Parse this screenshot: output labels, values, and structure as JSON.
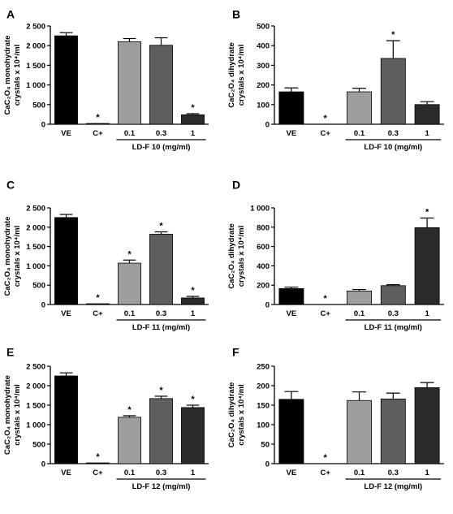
{
  "chart_data": [
    {
      "panel": "A",
      "type": "bar",
      "categories": [
        "VE",
        "C+",
        "0.1",
        "0.3",
        "1"
      ],
      "values": [
        2250,
        20,
        2100,
        2010,
        240
      ],
      "errors": [
        80,
        0,
        80,
        190,
        30
      ],
      "significant": [
        false,
        true,
        false,
        false,
        true
      ],
      "colors": [
        "#000000",
        "#000000",
        "#9e9e9e",
        "#5e5e5e",
        "#2a2a2a"
      ],
      "ylabel_line1": "CaC₂O₄ monohydrate",
      "ylabel_line2": "crystals x 10⁴/ml",
      "group_label": "LD-F 10 (mg/ml)",
      "ylim": [
        0,
        2500
      ],
      "yticks": [
        "0",
        "500",
        "1 000",
        "1 500",
        "2 000",
        "2 500"
      ],
      "ytick_values": [
        0,
        500,
        1000,
        1500,
        2000,
        2500
      ]
    },
    {
      "panel": "B",
      "type": "bar",
      "categories": [
        "VE",
        "C+",
        "0.1",
        "0.3",
        "1"
      ],
      "values": [
        165,
        0,
        165,
        335,
        100
      ],
      "errors": [
        20,
        0,
        18,
        90,
        15
      ],
      "significant": [
        false,
        true,
        false,
        true,
        false
      ],
      "colors": [
        "#000000",
        "#000000",
        "#9e9e9e",
        "#5e5e5e",
        "#2a2a2a"
      ],
      "ylabel_line1": "CaC₂O₄ dihydrate",
      "ylabel_line2": "crystals x 10⁴/ml",
      "group_label": "LD-F 10 (mg/ml)",
      "ylim": [
        0,
        500
      ],
      "yticks": [
        "0",
        "100",
        "200",
        "300",
        "400",
        "500"
      ],
      "ytick_values": [
        0,
        100,
        200,
        300,
        400,
        500
      ]
    },
    {
      "panel": "C",
      "type": "bar",
      "categories": [
        "VE",
        "C+",
        "0.1",
        "0.3",
        "1"
      ],
      "values": [
        2250,
        20,
        1070,
        1820,
        170
      ],
      "errors": [
        80,
        0,
        80,
        60,
        40
      ],
      "significant": [
        false,
        true,
        true,
        true,
        true
      ],
      "colors": [
        "#000000",
        "#000000",
        "#9e9e9e",
        "#5e5e5e",
        "#2a2a2a"
      ],
      "ylabel_line1": "CaC₂O₄ monohydrate",
      "ylabel_line2": "crystals x 10⁴/ml",
      "group_label": "LD-F 11 (mg/ml)",
      "ylim": [
        0,
        2500
      ],
      "yticks": [
        "0",
        "500",
        "1 000",
        "1 500",
        "2 000",
        "2 500"
      ],
      "ytick_values": [
        0,
        500,
        1000,
        1500,
        2000,
        2500
      ]
    },
    {
      "panel": "D",
      "type": "bar",
      "categories": [
        "VE",
        "C+",
        "0.1",
        "0.3",
        "1"
      ],
      "values": [
        165,
        0,
        140,
        195,
        795
      ],
      "errors": [
        15,
        0,
        15,
        10,
        100
      ],
      "significant": [
        false,
        true,
        false,
        false,
        true
      ],
      "colors": [
        "#000000",
        "#000000",
        "#9e9e9e",
        "#5e5e5e",
        "#2a2a2a"
      ],
      "ylabel_line1": "CaC₂O₄ dihydrate",
      "ylabel_line2": "crystals x 10⁴/ml",
      "group_label": "LD-F 11 (mg/ml)",
      "ylim": [
        0,
        1000
      ],
      "yticks": [
        "0",
        "200",
        "400",
        "600",
        "800",
        "1 000"
      ],
      "ytick_values": [
        0,
        200,
        400,
        600,
        800,
        1000
      ]
    },
    {
      "panel": "E",
      "type": "bar",
      "categories": [
        "VE",
        "C+",
        "0.1",
        "0.3",
        "1"
      ],
      "values": [
        2250,
        20,
        1190,
        1670,
        1440
      ],
      "errors": [
        80,
        0,
        40,
        60,
        60
      ],
      "significant": [
        false,
        true,
        true,
        true,
        true
      ],
      "colors": [
        "#000000",
        "#000000",
        "#9e9e9e",
        "#5e5e5e",
        "#2a2a2a"
      ],
      "ylabel_line1": "CaC₂O₄ monohydrate",
      "ylabel_line2": "crystals x 10⁴/ml",
      "group_label": "LD-F 12 (mg/ml)",
      "ylim": [
        0,
        2500
      ],
      "yticks": [
        "0",
        "500",
        "1 000",
        "1 500",
        "2 000",
        "2 500"
      ],
      "ytick_values": [
        0,
        500,
        1000,
        1500,
        2000,
        2500
      ]
    },
    {
      "panel": "F",
      "type": "bar",
      "categories": [
        "VE",
        "C+",
        "0.1",
        "0.3",
        "1"
      ],
      "values": [
        165,
        0,
        162,
        166,
        195
      ],
      "errors": [
        20,
        0,
        22,
        15,
        13
      ],
      "significant": [
        false,
        true,
        false,
        false,
        false
      ],
      "colors": [
        "#000000",
        "#000000",
        "#9e9e9e",
        "#5e5e5e",
        "#2a2a2a"
      ],
      "ylabel_line1": "CaC₂O₄ dihydrate",
      "ylabel_line2": "crystals x 10⁴/ml",
      "group_label": "LD-F 12 (mg/ml)",
      "ylim": [
        0,
        250
      ],
      "yticks": [
        "0",
        "50",
        "100",
        "150",
        "200",
        "250"
      ],
      "ytick_values": [
        0,
        50,
        100,
        150,
        200,
        250
      ]
    }
  ]
}
